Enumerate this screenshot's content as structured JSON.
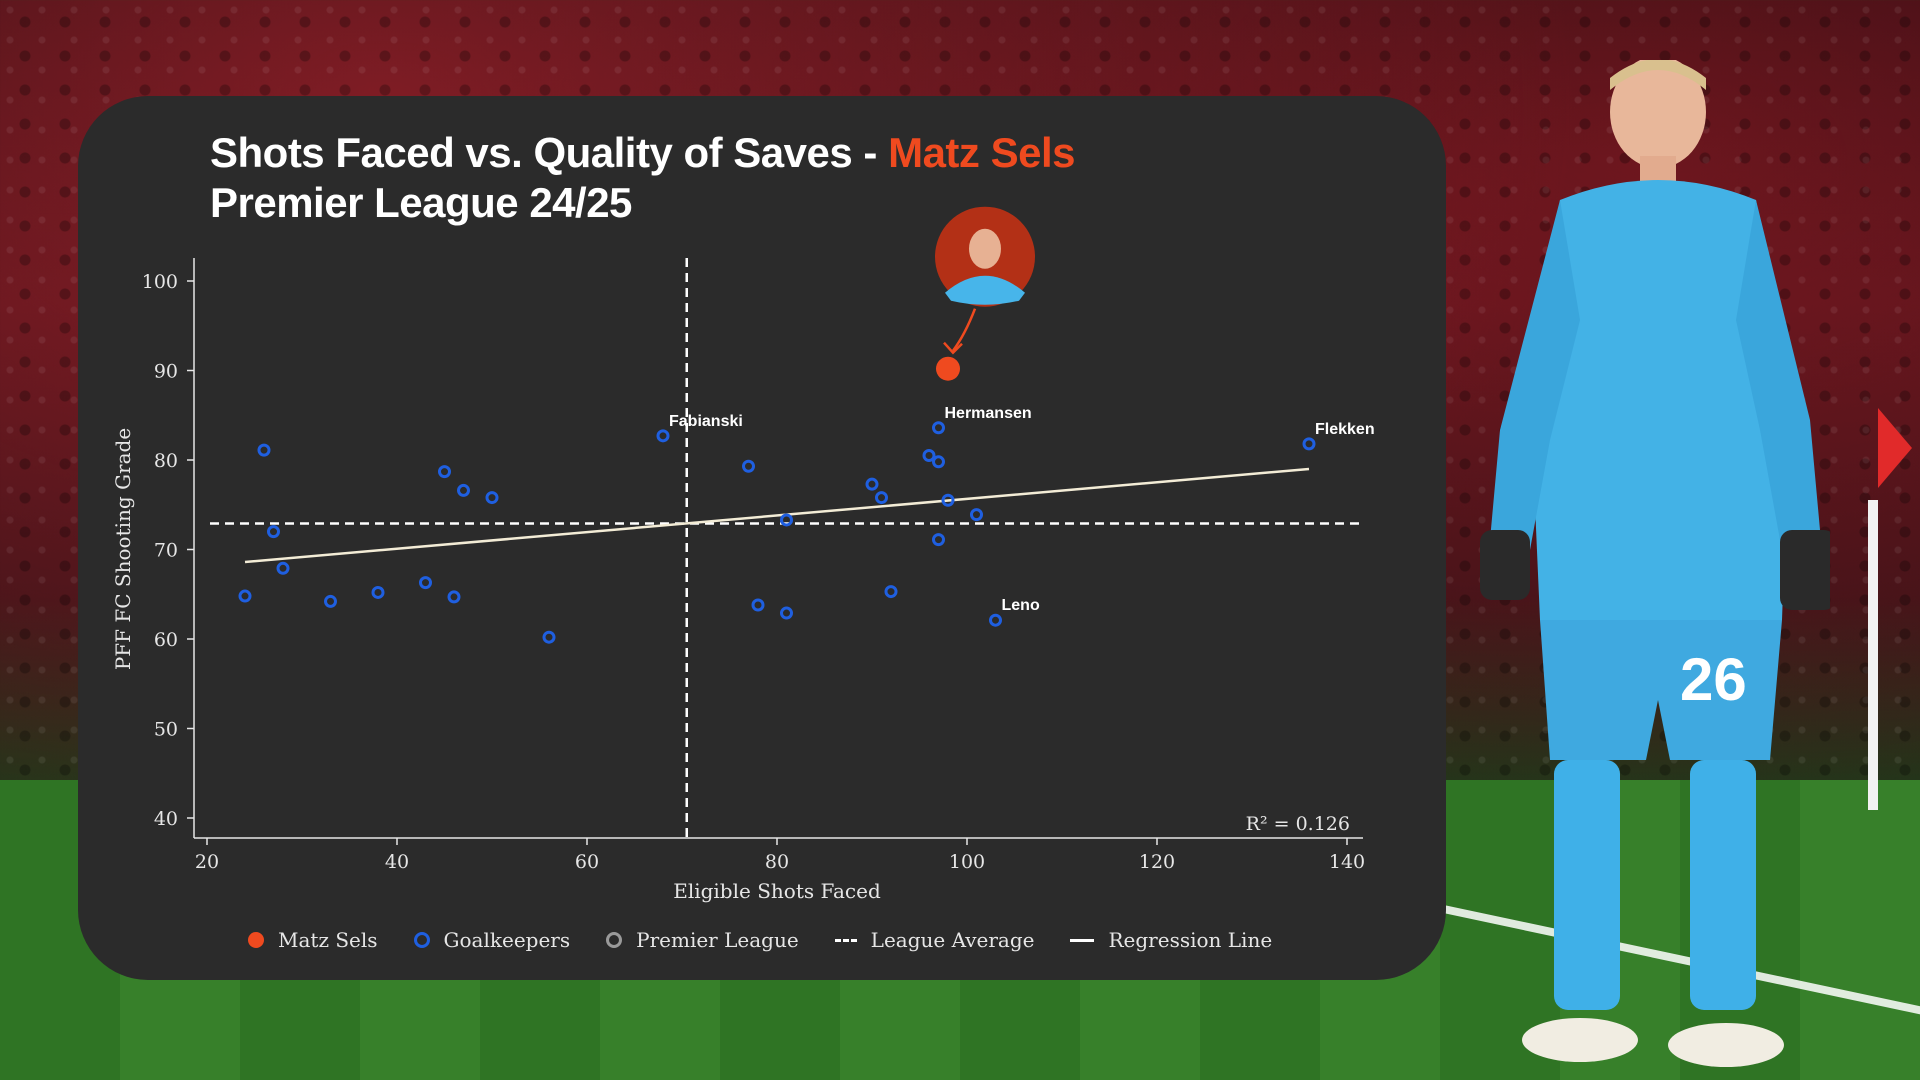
{
  "header": {
    "title_prefix": "Shots Faced vs. Quality of Saves - ",
    "title_player": "Matz Sels",
    "subtitle": "Premier League 24/25"
  },
  "colors": {
    "highlight": "#ef4a1f",
    "goalkeepers": "#1f5fe0",
    "premier_league": "#9a9a9a",
    "lines": "#ffffff",
    "regression": "#f3ecd6",
    "card": "#2b2b2b"
  },
  "chart_data": {
    "type": "scatter",
    "title": "Shots Faced vs. Quality of Saves - Matz Sels",
    "subtitle": "Premier League 24/25",
    "xlabel": "Eligible Shots Faced",
    "ylabel": "PFF FC Shooting Grade",
    "xlim": [
      20,
      140
    ],
    "ylim": [
      40,
      100
    ],
    "xticks": [
      20,
      40,
      60,
      80,
      100,
      120,
      140
    ],
    "yticks": [
      40,
      50,
      60,
      70,
      80,
      90,
      100
    ],
    "grid": false,
    "highlight": {
      "name": "Matz Sels",
      "x": 98,
      "y": 90.2
    },
    "series": [
      {
        "name": "Goalkeepers",
        "points": [
          {
            "x": 24,
            "y": 64.8
          },
          {
            "x": 26,
            "y": 81.1
          },
          {
            "x": 27,
            "y": 72.0
          },
          {
            "x": 28,
            "y": 67.9
          },
          {
            "x": 33,
            "y": 64.2
          },
          {
            "x": 38,
            "y": 65.2
          },
          {
            "x": 43,
            "y": 66.3
          },
          {
            "x": 45,
            "y": 78.7
          },
          {
            "x": 46,
            "y": 64.7
          },
          {
            "x": 47,
            "y": 76.6
          },
          {
            "x": 50,
            "y": 75.8
          },
          {
            "x": 56,
            "y": 60.2
          },
          {
            "x": 68,
            "y": 82.7,
            "label": "Fabianski"
          },
          {
            "x": 77,
            "y": 79.3
          },
          {
            "x": 78,
            "y": 63.8
          },
          {
            "x": 81,
            "y": 73.3
          },
          {
            "x": 81,
            "y": 62.9
          },
          {
            "x": 90,
            "y": 77.3
          },
          {
            "x": 91,
            "y": 75.8
          },
          {
            "x": 92,
            "y": 65.3
          },
          {
            "x": 96,
            "y": 80.5
          },
          {
            "x": 97,
            "y": 79.8
          },
          {
            "x": 97,
            "y": 83.6,
            "label": "Hermansen"
          },
          {
            "x": 97,
            "y": 71.1
          },
          {
            "x": 98,
            "y": 75.5
          },
          {
            "x": 101,
            "y": 73.9
          },
          {
            "x": 103,
            "y": 62.1,
            "label": "Leno"
          },
          {
            "x": 136,
            "y": 81.8,
            "label": "Flekken"
          }
        ]
      }
    ],
    "league_average": {
      "x": 70.5,
      "y": 72.9
    },
    "regression_line": {
      "x": [
        24,
        136
      ],
      "y": [
        68.6,
        79.0
      ]
    },
    "annotation": "R² = 0.126",
    "legend": [
      "Matz Sels",
      "Goalkeepers",
      "Premier League",
      "League Average",
      "Regression Line"
    ],
    "legend_position": "bottom"
  }
}
